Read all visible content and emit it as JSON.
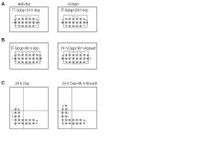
{
  "panels": [
    {
      "letter": "A",
      "headers": [
        "Anti-Itsa",
        "Isotype"
      ],
      "plots": [
        {
          "label": "IT-Sdup+24 h dep"
        },
        {
          "label": "IT-Sdup+24 h dep"
        }
      ]
    },
    {
      "letter": "B",
      "plots": [
        {
          "label": "IT-Sdup+96 h dep"
        },
        {
          "label": "24 h Dup+96 h Assault"
        }
      ]
    },
    {
      "letter": "C",
      "plots": [
        {
          "label": "24 h Dup"
        },
        {
          "label": "24 h Dup+96 h Assault"
        }
      ]
    }
  ]
}
